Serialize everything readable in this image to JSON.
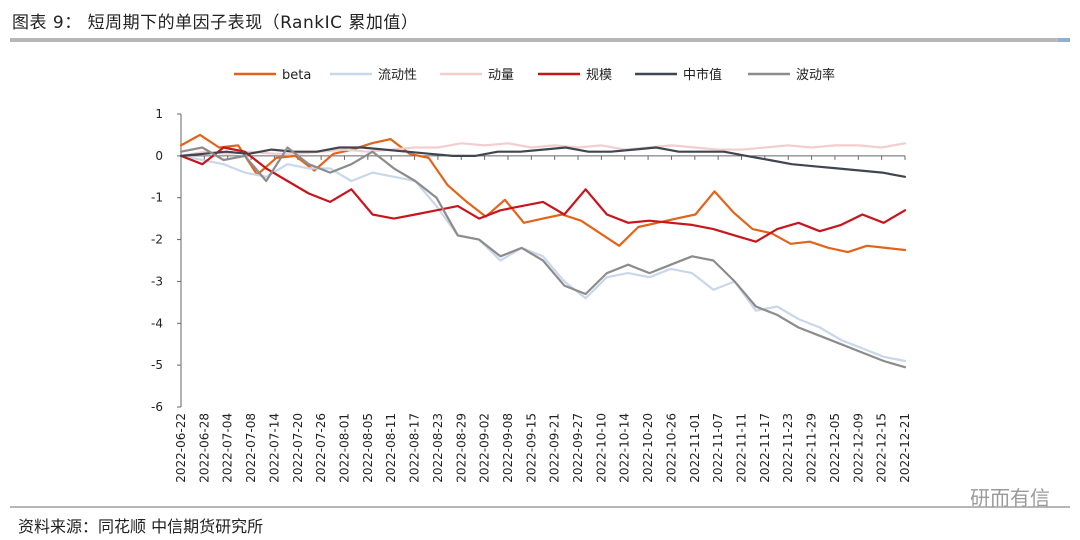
{
  "header": {
    "title": "图表 9：  短周期下的单因子表现（RankIC 累加值）"
  },
  "footer": {
    "source": "资料来源：同花顺   中信期货研究所",
    "watermark": "研而有信"
  },
  "colors": {
    "beta": "#e2641b",
    "liquidity": "#c9d7ea",
    "momentum": "#f3cece",
    "scale": "#c8151d",
    "midcap": "#3f4650",
    "volatility": "#8c8c8c"
  },
  "chart_data": {
    "type": "line",
    "ylim": [
      -6,
      1
    ],
    "yticks": [
      "1",
      "0",
      "-1",
      "-2",
      "-3",
      "-4",
      "-5",
      "-6"
    ],
    "grid": false,
    "legend_position": "top",
    "x_tick_labels": [
      "2022-06-22",
      "2022-06-28",
      "2022-07-04",
      "2022-07-08",
      "2022-07-14",
      "2022-07-20",
      "2022-07-26",
      "2022-08-01",
      "2022-08-05",
      "2022-08-11",
      "2022-08-17",
      "2022-08-23",
      "2022-08-29",
      "2022-09-02",
      "2022-09-08",
      "2022-09-15",
      "2022-09-21",
      "2022-09-27",
      "2022-10-10",
      "2022-10-14",
      "2022-10-20",
      "2022-10-26",
      "2022-11-01",
      "2022-11-07",
      "2022-11-11",
      "2022-11-17",
      "2022-11-23",
      "2022-11-29",
      "2022-12-05",
      "2022-12-09",
      "2022-12-15",
      "2022-12-21"
    ],
    "series": [
      {
        "name": "beta",
        "color_key": "beta",
        "values": [
          0.25,
          0.5,
          0.2,
          0.25,
          -0.45,
          -0.05,
          0.0,
          -0.35,
          0.05,
          0.15,
          0.3,
          0.4,
          0.05,
          -0.05,
          -0.7,
          -1.1,
          -1.45,
          -1.05,
          -1.6,
          -1.5,
          -1.4,
          -1.55,
          -1.85,
          -2.15,
          -1.7,
          -1.6,
          -1.5,
          -1.4,
          -0.85,
          -1.35,
          -1.75,
          -1.85,
          -2.1,
          -2.05,
          -2.2,
          -2.3,
          -2.15,
          -2.2,
          -2.25
        ]
      },
      {
        "name": "流动性",
        "color_key": "liquidity",
        "values": [
          0.0,
          -0.1,
          -0.2,
          -0.4,
          -0.5,
          -0.2,
          -0.3,
          -0.3,
          -0.6,
          -0.4,
          -0.5,
          -0.6,
          -1.2,
          -1.9,
          -2.0,
          -2.5,
          -2.2,
          -2.4,
          -3.0,
          -3.4,
          -2.9,
          -2.8,
          -2.9,
          -2.7,
          -2.8,
          -3.2,
          -3.0,
          -3.7,
          -3.6,
          -3.9,
          -4.1,
          -4.4,
          -4.6,
          -4.8,
          -4.9
        ]
      },
      {
        "name": "动量",
        "color_key": "momentum",
        "values": [
          0.0,
          0.1,
          0.05,
          0.1,
          0.05,
          0.05,
          0.1,
          0.15,
          0.1,
          0.15,
          0.2,
          0.2,
          0.3,
          0.25,
          0.3,
          0.2,
          0.25,
          0.2,
          0.25,
          0.15,
          0.2,
          0.25,
          0.2,
          0.15,
          0.15,
          0.2,
          0.25,
          0.2,
          0.25,
          0.25,
          0.2,
          0.3
        ]
      },
      {
        "name": "规模",
        "color_key": "scale",
        "values": [
          0.0,
          -0.2,
          0.2,
          0.1,
          -0.3,
          -0.6,
          -0.9,
          -1.1,
          -0.8,
          -1.4,
          -1.5,
          -1.4,
          -1.3,
          -1.2,
          -1.5,
          -1.3,
          -1.2,
          -1.1,
          -1.4,
          -0.8,
          -1.4,
          -1.6,
          -1.55,
          -1.6,
          -1.65,
          -1.75,
          -1.9,
          -2.05,
          -1.75,
          -1.6,
          -1.8,
          -1.65,
          -1.4,
          -1.6,
          -1.3
        ]
      },
      {
        "name": "中市值",
        "color_key": "midcap",
        "values": [
          0.0,
          0.05,
          0.1,
          0.05,
          0.15,
          0.1,
          0.1,
          0.2,
          0.2,
          0.15,
          0.1,
          0.05,
          0.0,
          0.0,
          0.1,
          0.1,
          0.15,
          0.2,
          0.1,
          0.1,
          0.15,
          0.2,
          0.1,
          0.1,
          0.1,
          0.0,
          -0.1,
          -0.2,
          -0.25,
          -0.3,
          -0.35,
          -0.4,
          -0.5
        ]
      },
      {
        "name": "波动率",
        "color_key": "volatility",
        "values": [
          0.1,
          0.2,
          -0.1,
          0.0,
          -0.6,
          0.2,
          -0.2,
          -0.4,
          -0.2,
          0.1,
          -0.3,
          -0.6,
          -1.0,
          -1.9,
          -2.0,
          -2.4,
          -2.2,
          -2.5,
          -3.1,
          -3.3,
          -2.8,
          -2.6,
          -2.8,
          -2.6,
          -2.4,
          -2.5,
          -3.0,
          -3.6,
          -3.8,
          -4.1,
          -4.3,
          -4.5,
          -4.7,
          -4.9,
          -5.05
        ]
      }
    ]
  }
}
